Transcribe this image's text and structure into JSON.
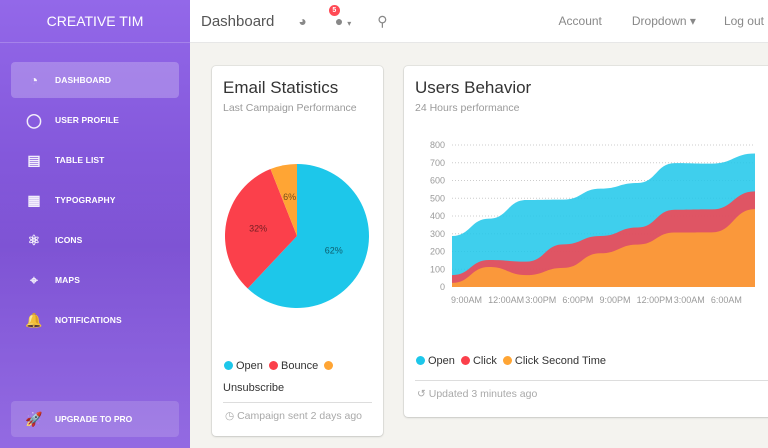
{
  "sidebar": {
    "brand": "CREATIVE TIM",
    "items": [
      {
        "label": "DASHBOARD",
        "icon": "pie-chart-icon",
        "glyph": "◔",
        "active": true
      },
      {
        "label": "USER PROFILE",
        "icon": "user-icon",
        "glyph": "◯"
      },
      {
        "label": "TABLE LIST",
        "icon": "clipboard-icon",
        "glyph": "▤"
      },
      {
        "label": "TYPOGRAPHY",
        "icon": "news-icon",
        "glyph": "▦"
      },
      {
        "label": "ICONS",
        "icon": "atom-icon",
        "glyph": "⚛"
      },
      {
        "label": "MAPS",
        "icon": "map-pin-icon",
        "glyph": "⌖"
      },
      {
        "label": "NOTIFICATIONS",
        "icon": "bell-icon",
        "glyph": "🔔"
      }
    ],
    "upgrade": {
      "label": "UPGRADE TO PRO",
      "icon": "rocket-icon",
      "glyph": "🚀"
    }
  },
  "navbar": {
    "title": "Dashboard",
    "notification_count": "5",
    "links": [
      "Account",
      "Dropdown ▾",
      "Log out"
    ]
  },
  "email_card": {
    "title": "Email Statistics",
    "subtitle": "Last Campaign Performance",
    "legend": [
      "Open",
      "Bounce",
      "Unsubscribe"
    ],
    "footer": "Campaign sent 2 days ago"
  },
  "users_card": {
    "title": "Users Behavior",
    "subtitle": "24 Hours performance",
    "legend": [
      "Open",
      "Click",
      "Click Second Time"
    ],
    "footer": "Updated 3 minutes ago"
  },
  "colors": {
    "open": "#1dc7ea",
    "bounce": "#fb404b",
    "unsubscribe": "#ffa534",
    "accent": "#9368e9"
  },
  "chart_data": [
    {
      "type": "pie",
      "labels": [
        "62%",
        "32%",
        "6%"
      ],
      "categories": [
        "Open",
        "Bounce",
        "Unsubscribe"
      ],
      "values": [
        62,
        32,
        6
      ]
    },
    {
      "type": "area",
      "categories": [
        "9:00AM",
        "12:00AM",
        "3:00PM",
        "6:00PM",
        "9:00PM",
        "12:00PM",
        "3:00AM",
        "6:00AM",
        ""
      ],
      "yticks": [
        "0",
        "100",
        "200",
        "300",
        "400",
        "500",
        "600",
        "700",
        "800"
      ],
      "ylim": [
        0,
        800
      ],
      "grid": true,
      "series": [
        {
          "name": "Open",
          "values": [
            287,
            385,
            490,
            492,
            554,
            586,
            698,
            695,
            752
          ]
        },
        {
          "name": "Click",
          "values": [
            67,
            152,
            143,
            240,
            287,
            335,
            435,
            437,
            539
          ]
        },
        {
          "name": "Click Second Time",
          "values": [
            23,
            113,
            67,
            108,
            190,
            239,
            307,
            308,
            439
          ]
        }
      ]
    }
  ]
}
